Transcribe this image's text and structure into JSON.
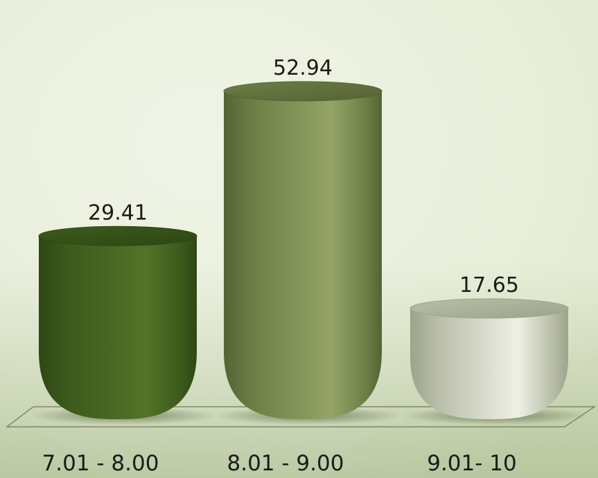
{
  "chart_data": {
    "type": "bar",
    "style": "3d-cylinder",
    "categories": [
      "7.01 - 8.00",
      "8.01 - 9.00",
      "9.01- 10"
    ],
    "values": [
      29.41,
      52.94,
      17.65
    ],
    "data_labels": [
      "29.41",
      "52.94",
      "17.65"
    ],
    "title": "",
    "xlabel": "",
    "ylabel": "",
    "ylim": [
      0,
      58
    ],
    "grid": false,
    "legend": "none",
    "colors": {
      "background_light": "#e4ebd3",
      "background_dark": "#b8c79f",
      "bars": [
        {
          "edge": "#2f4714",
          "mid": "#527428",
          "top": "#3b5a1c"
        },
        {
          "edge": "#556334",
          "mid": "#95a468",
          "top": "#6d7e45"
        },
        {
          "edge": "#9ca489",
          "mid": "#eef0e4",
          "top": "#b9beaa"
        }
      ],
      "floor_line": "#6e7a57",
      "shadow": "#4d5a35"
    }
  }
}
